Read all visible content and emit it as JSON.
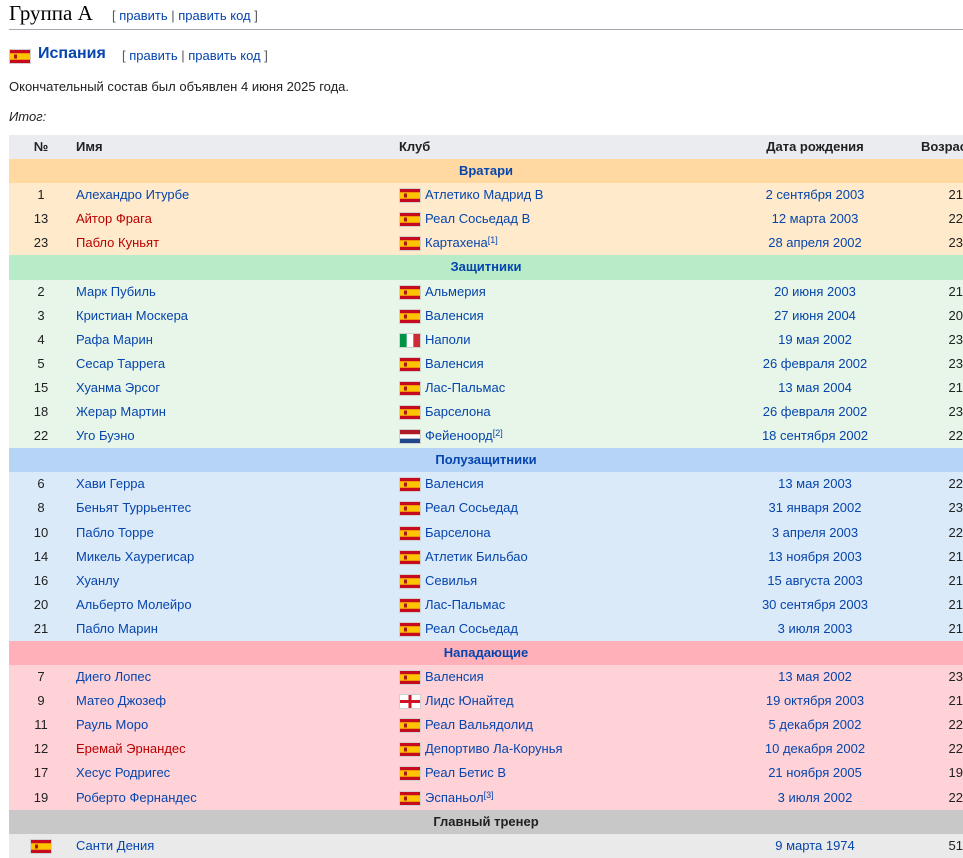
{
  "group": {
    "title": "Группа A",
    "edit": "править",
    "edit_code": "править код"
  },
  "team": {
    "name": "Испания",
    "edit": "править",
    "edit_code": "править код",
    "flag_icon": "spain-flag-icon"
  },
  "intro": "Окончательный состав был объявлен 4 июня 2025 года.",
  "result_label": "Итог:",
  "colors": {
    "gk_head": "#ffd9a1",
    "gk": "#ffebcc",
    "df_head": "#b8ebc8",
    "df": "#e7f6e8",
    "mf_head": "#b6d4f6",
    "mf": "#dbeaf9",
    "fw_head": "#ffb0b8",
    "fw": "#ffd2d7",
    "link": "#0645ad",
    "redlink": "#ba0000"
  },
  "table": {
    "headers": {
      "no": "№",
      "name": "Имя",
      "club": "Клуб",
      "dob": "Дата рождения",
      "age": "Возраст"
    },
    "sections": [
      {
        "title": "Вратари",
        "cls": "gk",
        "players": [
          {
            "no": "1",
            "name": "Алехандро Итурбе",
            "red": false,
            "flag": "es",
            "club": "Атлетико Мадрид B",
            "ref": "",
            "dob": "2 сентября 2003",
            "age": "21"
          },
          {
            "no": "13",
            "name": "Айтор Фрага",
            "red": true,
            "flag": "es",
            "club": "Реал Сосьедад B",
            "ref": "",
            "dob": "12 марта 2003",
            "age": "22"
          },
          {
            "no": "23",
            "name": "Пабло Куньят",
            "red": true,
            "flag": "es",
            "club": "Картахена",
            "ref": "[1]",
            "dob": "28 апреля 2002",
            "age": "23"
          }
        ]
      },
      {
        "title": "Защитники",
        "cls": "df",
        "players": [
          {
            "no": "2",
            "name": "Марк Пубиль",
            "red": false,
            "flag": "es",
            "club": "Альмерия",
            "ref": "",
            "dob": "20 июня 2003",
            "age": "21"
          },
          {
            "no": "3",
            "name": "Кристиан Москера",
            "red": false,
            "flag": "es",
            "club": "Валенсия",
            "ref": "",
            "dob": "27 июня 2004",
            "age": "20"
          },
          {
            "no": "4",
            "name": "Рафа Марин",
            "red": false,
            "flag": "it",
            "club": "Наполи",
            "ref": "",
            "dob": "19 мая 2002",
            "age": "23"
          },
          {
            "no": "5",
            "name": "Сесар Таррега",
            "red": false,
            "flag": "es",
            "club": "Валенсия",
            "ref": "",
            "dob": "26 февраля 2002",
            "age": "23"
          },
          {
            "no": "15",
            "name": "Хуанма Эрсог",
            "red": false,
            "flag": "es",
            "club": "Лас-Пальмас",
            "ref": "",
            "dob": "13 мая 2004",
            "age": "21"
          },
          {
            "no": "18",
            "name": "Жерар Мартин",
            "red": false,
            "flag": "es",
            "club": "Барселона",
            "ref": "",
            "dob": "26 февраля 2002",
            "age": "23"
          },
          {
            "no": "22",
            "name": "Уго Буэно",
            "red": false,
            "flag": "nl",
            "club": "Фейеноорд",
            "ref": "[2]",
            "dob": "18 сентября 2002",
            "age": "22"
          }
        ]
      },
      {
        "title": "Полузащитники",
        "cls": "mf",
        "players": [
          {
            "no": "6",
            "name": "Хави Герра",
            "red": false,
            "flag": "es",
            "club": "Валенсия",
            "ref": "",
            "dob": "13 мая 2003",
            "age": "22"
          },
          {
            "no": "8",
            "name": "Беньят Туррьентес",
            "red": false,
            "flag": "es",
            "club": "Реал Сосьедад",
            "ref": "",
            "dob": "31 января 2002",
            "age": "23"
          },
          {
            "no": "10",
            "name": "Пабло Торре",
            "red": false,
            "flag": "es",
            "club": "Барселона",
            "ref": "",
            "dob": "3 апреля 2003",
            "age": "22"
          },
          {
            "no": "14",
            "name": "Микель Хаурегисар",
            "red": false,
            "flag": "es",
            "club": "Атлетик Бильбао",
            "ref": "",
            "dob": "13 ноября 2003",
            "age": "21"
          },
          {
            "no": "16",
            "name": "Хуанлу",
            "red": false,
            "flag": "es",
            "club": "Севилья",
            "ref": "",
            "dob": "15 августа 2003",
            "age": "21"
          },
          {
            "no": "20",
            "name": "Альберто Молейро",
            "red": false,
            "flag": "es",
            "club": "Лас-Пальмас",
            "ref": "",
            "dob": "30 сентября 2003",
            "age": "21"
          },
          {
            "no": "21",
            "name": "Пабло Марин",
            "red": false,
            "flag": "es",
            "club": "Реал Сосьедад",
            "ref": "",
            "dob": "3 июля 2003",
            "age": "21"
          }
        ]
      },
      {
        "title": "Нападающие",
        "cls": "fw",
        "players": [
          {
            "no": "7",
            "name": "Диего Лопес",
            "red": false,
            "flag": "es",
            "club": "Валенсия",
            "ref": "",
            "dob": "13 мая 2002",
            "age": "23"
          },
          {
            "no": "9",
            "name": "Матео Джозеф",
            "red": false,
            "flag": "en",
            "club": "Лидс Юнайтед",
            "ref": "",
            "dob": "19 октября 2003",
            "age": "21"
          },
          {
            "no": "11",
            "name": "Рауль Моро",
            "red": false,
            "flag": "es",
            "club": "Реал Вальядолид",
            "ref": "",
            "dob": "5 декабря 2002",
            "age": "22"
          },
          {
            "no": "12",
            "name": "Еремай Эрнандес",
            "red": true,
            "flag": "es",
            "club": "Депортиво Ла-Корунья",
            "ref": "",
            "dob": "10 декабря 2002",
            "age": "22"
          },
          {
            "no": "17",
            "name": "Хесус Родригес",
            "red": false,
            "flag": "es",
            "club": "Реал Бетис B",
            "ref": "",
            "dob": "21 ноября 2005",
            "age": "19"
          },
          {
            "no": "19",
            "name": "Роберто Фернандес",
            "red": false,
            "flag": "es",
            "club": "Эспаньол",
            "ref": "[3]",
            "dob": "3 июля 2002",
            "age": "22"
          }
        ]
      }
    ],
    "coach": {
      "title": "Главный тренер",
      "flag": "es",
      "name": "Санти Дения",
      "dob": "9 марта 1974",
      "age": "51"
    }
  }
}
